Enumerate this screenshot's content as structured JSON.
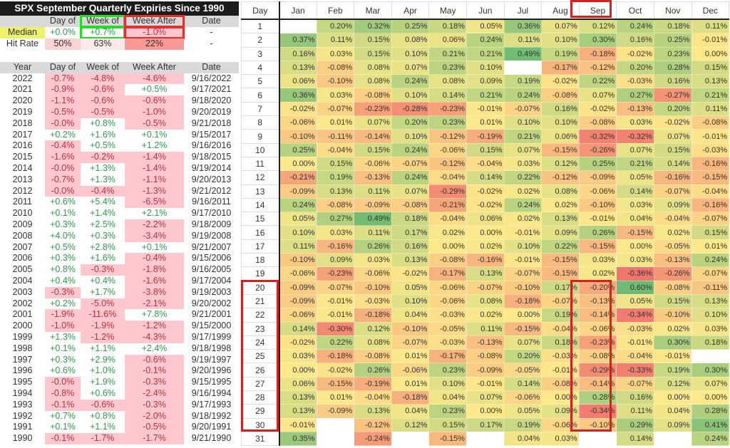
{
  "summary": {
    "title": "SPX September Quarterly Expiries Since 1990",
    "columns": [
      "",
      "Day of",
      "Week of",
      "Week After",
      "Date"
    ],
    "median": {
      "label": "Median",
      "day_of": "+0.0%",
      "week_of": "+0.7%",
      "week_after": "-1.0%",
      "date": "-"
    },
    "hit_rate": {
      "label": "Hit Rate",
      "day_of": "50%",
      "week_of": "63%",
      "week_after": "22%",
      "date": "-"
    },
    "year_columns": [
      "Year",
      "Day of",
      "Week of",
      "Week After",
      "Date"
    ],
    "rows": [
      [
        "2022",
        "-0.7%",
        "-4.8%",
        "-4.6%",
        "9/16/2022"
      ],
      [
        "2021",
        "-0.9%",
        "-0.6%",
        "+0.5%",
        "9/17/2021"
      ],
      [
        "2020",
        "-1.1%",
        "-0.6%",
        "-0.6%",
        "9/18/2020"
      ],
      [
        "2019",
        "-0.5%",
        "-0.5%",
        "-1.0%",
        "9/20/2019"
      ],
      [
        "2018",
        "-0.0%",
        "+0.8%",
        "-0.5%",
        "9/21/2018"
      ],
      [
        "2017",
        "+0.2%",
        "+1.6%",
        "+0.1%",
        "9/15/2017"
      ],
      [
        "2016",
        "-0.4%",
        "+0.5%",
        "+1.2%",
        "9/16/2016"
      ],
      [
        "2015",
        "-1.6%",
        "-0.2%",
        "-1.4%",
        "9/18/2015"
      ],
      [
        "2014",
        "-0.0%",
        "+1.3%",
        "-1.4%",
        "9/19/2014"
      ],
      [
        "2013",
        "-0.7%",
        "+1.3%",
        "-1.1%",
        "9/20/2013"
      ],
      [
        "2012",
        "-0.0%",
        "-0.4%",
        "-1.3%",
        "9/21/2012"
      ],
      [
        "2011",
        "+0.6%",
        "+5.4%",
        "-6.5%",
        "9/16/2011"
      ],
      [
        "2010",
        "+0.1%",
        "+1.4%",
        "+2.1%",
        "9/17/2010"
      ],
      [
        "2009",
        "+0.3%",
        "+2.5%",
        "-2.2%",
        "9/18/2009"
      ],
      [
        "2008",
        "+4.0%",
        "+0.3%",
        "-3.4%",
        "9/19/2008"
      ],
      [
        "2007",
        "+0.5%",
        "+2.8%",
        "+0.1%",
        "9/21/2007"
      ],
      [
        "2006",
        "+0.3%",
        "+1.6%",
        "-0.4%",
        "9/15/2006"
      ],
      [
        "2005",
        "+0.8%",
        "-0.3%",
        "-1.8%",
        "9/16/2005"
      ],
      [
        "2004",
        "+0.4%",
        "+0.4%",
        "-1.6%",
        "9/17/2004"
      ],
      [
        "2003",
        "-0.3%",
        "+1.7%",
        "-3.8%",
        "9/19/2003"
      ],
      [
        "2002",
        "+0.2%",
        "-5.0%",
        "-2.1%",
        "9/20/2002"
      ],
      [
        "2001",
        "-1.9%",
        "-11.6%",
        "+7.8%",
        "9/21/2001"
      ],
      [
        "2000",
        "-1.0%",
        "-1.9%",
        "-1.2%",
        "9/15/2000"
      ],
      [
        "1999",
        "+1.3%",
        "-1.2%",
        "-4.3%",
        "9/17/1999"
      ],
      [
        "1998",
        "+0.1%",
        "+1.1%",
        "+2.4%",
        "9/18/1998"
      ],
      [
        "1997",
        "+0.3%",
        "+2.9%",
        "-0.6%",
        "9/19/1997"
      ],
      [
        "1996",
        "+0.6%",
        "+1.0%",
        "-0.1%",
        "9/20/1996"
      ],
      [
        "1995",
        "-0.0%",
        "+1.9%",
        "-0.3%",
        "9/15/1995"
      ],
      [
        "1994",
        "-0.8%",
        "+0.6%",
        "-2.4%",
        "9/16/1994"
      ],
      [
        "1993",
        "-0.1%",
        "-0.6%",
        "-0.3%",
        "9/17/1993"
      ],
      [
        "1992",
        "+0.7%",
        "+0.8%",
        "-2.0%",
        "9/18/1992"
      ],
      [
        "1991",
        "+0.1%",
        "+1.1%",
        "-0.5%",
        "9/20/1991"
      ],
      [
        "1990",
        "-0.1%",
        "-1.7%",
        "-1.7%",
        "9/21/1990"
      ]
    ]
  },
  "chart_data": {
    "type": "heatmap",
    "row_header": "Day",
    "columns": [
      "Jan",
      "Feb",
      "Mar",
      "Apr",
      "May",
      "Jun",
      "Jul",
      "Aug",
      "Sep",
      "Oct",
      "Nov",
      "Dec"
    ],
    "highlighted_column": "Sep",
    "highlighted_days": [
      20,
      30
    ],
    "colors": {
      "low": "#f0766d",
      "mid": "#fde98a",
      "high": "#6fbb74"
    },
    "rows": [
      [
        "1",
        "",
        "0.20%",
        "0.32%",
        "0.25%",
        "0.18%",
        "0.05%",
        "0.36%",
        "0.07%",
        "0.12%",
        "0.24%",
        "0.18%",
        "0.11%"
      ],
      [
        "2",
        "0.37%",
        "0.11%",
        "0.15%",
        "0.08%",
        "0.06%",
        "0.24%",
        "0.11%",
        "0.10%",
        "0.30%",
        "0.16%",
        "0.25%",
        "-0.01%"
      ],
      [
        "3",
        "0.16%",
        "0.03%",
        "0.15%",
        "0.10%",
        "0.21%",
        "0.21%",
        "0.49%",
        "0.19%",
        "-0.18%",
        "-0.02%",
        "0.23%",
        "0.00%"
      ],
      [
        "4",
        "0.13%",
        "-0.08%",
        "0.08%",
        "0.07%",
        "0.23%",
        "0.10%",
        "",
        "-0.17%",
        "-0.12%",
        "0.20%",
        "0.28%",
        "0.15%"
      ],
      [
        "5",
        "0.06%",
        "-0.10%",
        "0.08%",
        "0.24%",
        "0.08%",
        "0.09%",
        "0.19%",
        "-0.02%",
        "0.22%",
        "-0.03%",
        "0.16%",
        "0.13%"
      ],
      [
        "6",
        "0.36%",
        "0.03%",
        "-0.08%",
        "0.10%",
        "0.14%",
        "0.21%",
        "0.24%",
        "-0.08%",
        "0.07%",
        "0.27%",
        "-0.27%",
        "0.21%"
      ],
      [
        "7",
        "-0.02%",
        "-0.07%",
        "-0.23%",
        "-0.28%",
        "-0.23%",
        "-0.01%",
        "-0.07%",
        "0.16%",
        "-0.02%",
        "-0.13%",
        "0.20%",
        "0.11%"
      ],
      [
        "8",
        "-0.06%",
        "0.01%",
        "0.07%",
        "0.20%",
        "0.23%",
        "0.01%",
        "0.10%",
        "0.10%",
        "-0.08%",
        "0.03%",
        "-0.02%",
        "-0.08%"
      ],
      [
        "9",
        "-0.10%",
        "-0.11%",
        "-0.14%",
        "0.10%",
        "-0.12%",
        "-0.19%",
        "0.21%",
        "0.06%",
        "-0.32%",
        "-0.32%",
        "0.07%",
        "-0.01%"
      ],
      [
        "10",
        "0.25%",
        "-0.04%",
        "0.15%",
        "0.24%",
        "-0.06%",
        "0.15%",
        "0.07%",
        "-0.15%",
        "-0.26%",
        "0.07%",
        "0.15%",
        "-0.03%"
      ],
      [
        "11",
        "0.00%",
        "0.15%",
        "-0.06%",
        "-0.07%",
        "-0.12%",
        "-0.04%",
        "0.03%",
        "0.12%",
        "0.25%",
        "0.21%",
        "0.14%",
        "-0.16%"
      ],
      [
        "12",
        "-0.21%",
        "0.19%",
        "-0.13%",
        "0.24%",
        "-0.04%",
        "0.14%",
        "0.22%",
        "-0.12%",
        "-0.09%",
        "0.05%",
        "-0.16%",
        "-0.15%"
      ],
      [
        "13",
        "-0.09%",
        "0.13%",
        "0.11%",
        "0.07%",
        "-0.29%",
        "-0.02%",
        "0.02%",
        "0.08%",
        "-0.06%",
        "0.14%",
        "-0.07%",
        "-0.04%"
      ],
      [
        "14",
        "0.24%",
        "-0.08%",
        "-0.09%",
        "-0.08%",
        "-0.21%",
        "-0.02%",
        "0.24%",
        "0.02%",
        "-0.10%",
        "0.03%",
        "0.09%",
        "-0.16%"
      ],
      [
        "15",
        "0.05%",
        "0.27%",
        "0.49%",
        "0.18%",
        "-0.04%",
        "0.06%",
        "0.02%",
        "0.13%",
        "-0.01%",
        "0.04%",
        "-0.04%",
        "-0.07%"
      ],
      [
        "16",
        "0.10%",
        "0.03%",
        "0.11%",
        "0.17%",
        "0.02%",
        "0.00%",
        "-0.01%",
        "0.09%",
        "0.26%",
        "-0.15%",
        "0.02%",
        "0.15%"
      ],
      [
        "17",
        "0.11%",
        "-0.16%",
        "0.26%",
        "0.16%",
        "0.00%",
        "0.02%",
        "0.10%",
        "0.22%",
        "-0.15%",
        "0.00%",
        "-0.05%",
        "0.01%"
      ],
      [
        "18",
        "-0.10%",
        "0.09%",
        "0.03%",
        "0.13%",
        "-0.08%",
        "-0.16%",
        "-0.01%",
        "-0.15%",
        "0.03%",
        "0.03%",
        "-0.13%",
        "0.24%"
      ],
      [
        "19",
        "-0.06%",
        "-0.23%",
        "-0.06%",
        "-0.02%",
        "-0.17%",
        "0.13%",
        "-0.07%",
        "-0.15%",
        "0.02%",
        "-0.36%",
        "-0.26%",
        "-0.07%"
      ],
      [
        "20",
        "-0.09%",
        "-0.07%",
        "-0.10%",
        "0.05%",
        "-0.06%",
        "-0.07%",
        "-0.10%",
        "0.17%",
        "-0.20%",
        "0.60%",
        "-0.08%",
        "-0.11%"
      ],
      [
        "21",
        "-0.09%",
        "-0.01%",
        "-0.03%",
        "0.10%",
        "-0.06%",
        "0.08%",
        "-0.18%",
        "-0.07%",
        "-0.13%",
        "0.05%",
        "0.15%",
        "0.13%"
      ],
      [
        "22",
        "-0.06%",
        "-0.01%",
        "-0.18%",
        "0.04%",
        "-0.03%",
        "0.02%",
        "0.00%",
        "0.19%",
        "-0.14%",
        "-0.34%",
        "-0.10%",
        "0.10%"
      ],
      [
        "23",
        "0.14%",
        "-0.30%",
        "0.12%",
        "-0.10%",
        "-0.05%",
        "0.11%",
        "-0.15%",
        "-0.04%",
        "-0.06%",
        "-0.03%",
        "0.02%",
        "0.03%"
      ],
      [
        "24",
        "-0.02%",
        "0.22%",
        "0.08%",
        "-0.07%",
        "-0.03%",
        "-0.13%",
        "0.07%",
        "0.18%",
        "-0.23%",
        "-0.01%",
        "0.30%",
        "0.18%"
      ],
      [
        "25",
        "0.03%",
        "-0.18%",
        "-0.08%",
        "0.01%",
        "-0.17%",
        "-0.08%",
        "0.20%",
        "-0.03%",
        "-0.08%",
        "-0.04%",
        "-0.01%",
        ""
      ],
      [
        "26",
        "0.00%",
        "-0.02%",
        "0.26%",
        "-0.06%",
        "0.23%",
        "-0.09%",
        "-0.05%",
        "-0.01%",
        "-0.29%",
        "-0.33%",
        "0.19%",
        "0.30%"
      ],
      [
        "27",
        "0.06%",
        "-0.15%",
        "-0.19%",
        "0.01%",
        "0.10%",
        "-0.01%",
        "0.14%",
        "-0.08%",
        "-0.14%",
        "-0.07%",
        "0.12%",
        "0.07%"
      ],
      [
        "28",
        "0.13%",
        "0.01%",
        "-0.04%",
        "-0.18%",
        "0.04%",
        "0.07%",
        "-0.06%",
        "0.00%",
        "0.28%",
        "0.16%",
        "0.00%",
        "0.00%"
      ],
      [
        "29",
        "0.13%",
        "-0.09%",
        "0.13%",
        "0.04%",
        "0.23%",
        "0.00%",
        "0.05%",
        "0.09%",
        "-0.34%",
        "0.11%",
        "0.04%",
        "0.28%"
      ],
      [
        "30",
        "-0.01%",
        "",
        "-0.12%",
        "0.12%",
        "0.15%",
        "0.17%",
        "0.19%",
        "-0.06%",
        "-0.10%",
        "0.29%",
        "0.09%",
        "0.41%"
      ],
      [
        "31",
        "0.35%",
        "",
        "-0.24%",
        "",
        "-0.15%",
        "",
        "0.04%",
        "0.03%",
        "",
        "0.14%",
        "",
        "0.24%"
      ]
    ]
  }
}
